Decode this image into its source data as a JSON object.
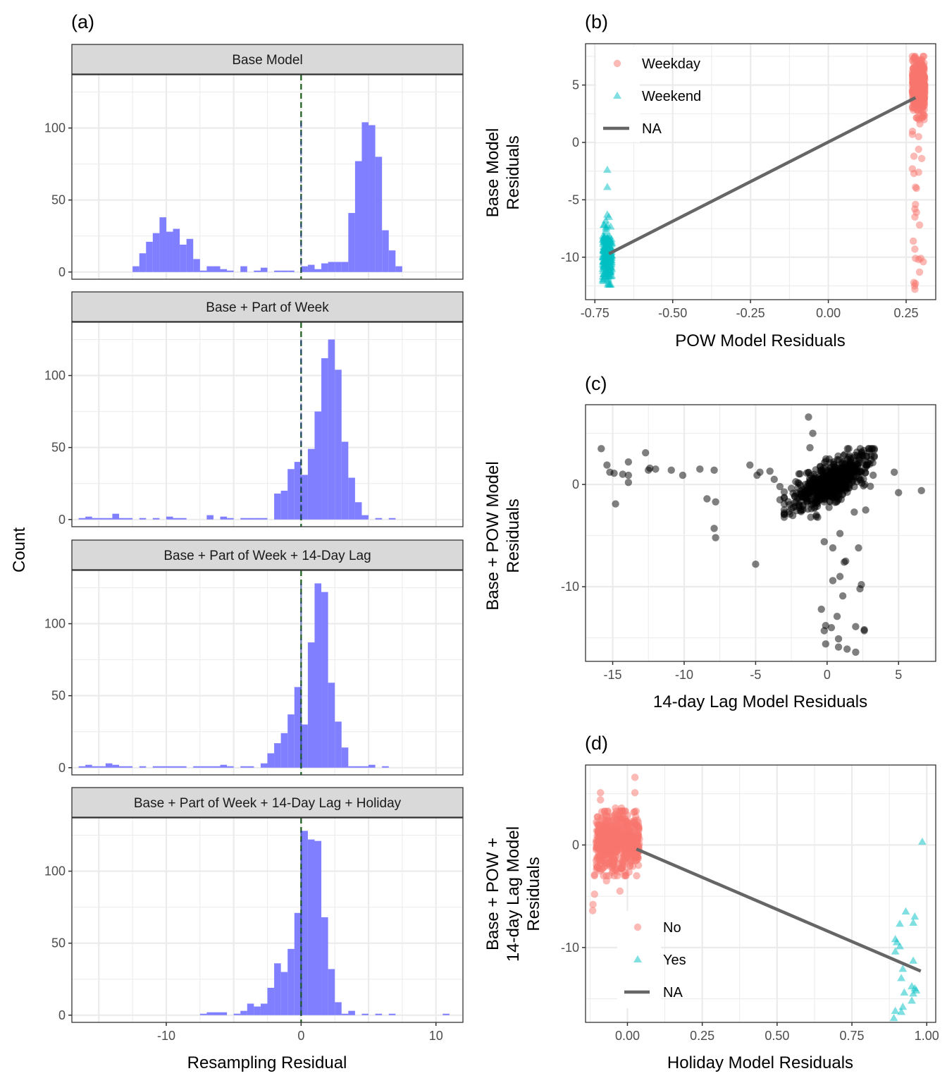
{
  "chart_data": [
    {
      "id": "a",
      "type": "bar",
      "panel_label": "(a)",
      "subtype": "faceted histogram",
      "xlabel": "Resampling Residual",
      "ylabel": "Count",
      "xlim": [
        -17,
        12
      ],
      "ylim": [
        -5,
        137
      ],
      "x_ticks": [
        -10,
        0,
        10
      ],
      "y_ticks": [
        0,
        50,
        100
      ],
      "bin_width": 0.5,
      "bar_color": "#7f7fff",
      "reference_line": {
        "x": 0,
        "style": "dashed",
        "color": "#1a5c1a"
      },
      "facets": [
        {
          "title": "Base Model",
          "bins_start": [
            -12.5,
            -12,
            -11.5,
            -11,
            -10.5,
            -10,
            -9.5,
            -9,
            -8.5,
            -8,
            -7.5,
            -7,
            -6.5,
            -6,
            -5.5,
            -5,
            -4.5,
            -4,
            -3.5,
            -3,
            -2.5,
            -2,
            -1.5,
            -1,
            -0.5,
            0,
            0.5,
            1,
            1.5,
            2,
            2.5,
            3,
            3.5,
            4,
            4.5,
            5,
            5.5,
            6,
            6.5,
            7
          ],
          "counts": [
            4,
            13,
            21,
            27,
            38,
            28,
            30,
            19,
            23,
            9,
            1,
            4,
            4,
            2,
            1,
            0,
            4,
            0,
            1,
            3,
            0,
            1,
            1,
            1,
            0,
            4,
            5,
            2,
            6,
            7,
            7,
            7,
            41,
            77,
            104,
            102,
            80,
            29,
            15,
            4
          ]
        },
        {
          "title": "Base + Part of Week",
          "bins_start": [
            -16.5,
            -16,
            -15.5,
            -15,
            -14.5,
            -14,
            -13.5,
            -13,
            -12.5,
            -12,
            -11.5,
            -11,
            -10.5,
            -10,
            -9.5,
            -9,
            -8.5,
            -8,
            -7.5,
            -7,
            -6.5,
            -6,
            -5.5,
            -5,
            -4.5,
            -4,
            -3.5,
            -3,
            -2.5,
            -2,
            -1.5,
            -1,
            -0.5,
            0,
            0.5,
            1,
            1.5,
            2,
            2.5,
            3,
            3.5,
            4,
            4.5,
            5,
            5.5,
            6,
            6.5
          ],
          "counts": [
            1,
            2,
            1,
            1,
            1,
            4,
            1,
            1,
            0,
            1,
            0,
            1,
            0,
            2,
            1,
            1,
            0,
            0,
            0,
            3,
            0,
            2,
            1,
            0,
            1,
            1,
            1,
            1,
            0,
            18,
            20,
            35,
            40,
            31,
            49,
            75,
            112,
            125,
            104,
            54,
            29,
            12,
            3,
            0,
            1,
            0,
            1
          ]
        },
        {
          "title": "Base + Part of Week + 14-Day Lag",
          "bins_start": [
            -16.5,
            -16,
            -15.5,
            -15,
            -14.5,
            -14,
            -13.5,
            -13,
            -12.5,
            -12,
            -11.5,
            -11,
            -10.5,
            -10,
            -9.5,
            -9,
            -8.5,
            -8,
            -7.5,
            -7,
            -6.5,
            -6,
            -5.5,
            -5,
            -4.5,
            -4,
            -3.5,
            -3,
            -2.5,
            -2,
            -1.5,
            -1,
            -0.5,
            0,
            0.5,
            1,
            1.5,
            2,
            2.5,
            3,
            3.5,
            4,
            4.5,
            5,
            5.5,
            6,
            6.5
          ],
          "counts": [
            1,
            2,
            1,
            1,
            3,
            2,
            1,
            1,
            0,
            1,
            0,
            1,
            1,
            1,
            1,
            1,
            0,
            1,
            1,
            1,
            1,
            2,
            1,
            0,
            1,
            1,
            0,
            3,
            10,
            17,
            24,
            37,
            56,
            30,
            87,
            128,
            122,
            59,
            32,
            14,
            1,
            1,
            1,
            2,
            0,
            1,
            0
          ]
        },
        {
          "title": "Base + Part of Week + 14-Day Lag + Holiday",
          "bins_start": [
            -7.5,
            -7,
            -6.5,
            -6,
            -5.5,
            -5,
            -4.5,
            -4,
            -3.5,
            -3,
            -2.5,
            -2,
            -1.5,
            -1,
            -0.5,
            0,
            0.5,
            1,
            1.5,
            2,
            2.5,
            3,
            3.5,
            4,
            4.5,
            5,
            5.5,
            6,
            6.5,
            7,
            7.5,
            8,
            8.5,
            9,
            9.5,
            10,
            10.5
          ],
          "counts": [
            1,
            2,
            2,
            2,
            0,
            1,
            3,
            8,
            6,
            8,
            19,
            36,
            30,
            46,
            71,
            128,
            122,
            121,
            68,
            32,
            9,
            1,
            3,
            0,
            1,
            0,
            1,
            0,
            1,
            0,
            0,
            0,
            0,
            0,
            0,
            0,
            1
          ]
        }
      ]
    },
    {
      "id": "b",
      "type": "scatter",
      "panel_label": "(b)",
      "xlabel": "POW Model Residuals",
      "ylabel": "Base Model Residuals",
      "xlim": [
        -0.78,
        0.345
      ],
      "ylim": [
        -13.7,
        8.6
      ],
      "x_ticks": [
        -0.75,
        -0.5,
        -0.25,
        0.0
      ],
      "x_tick_labels": [
        "-0.75",
        "-0.50",
        "-0.25",
        "0.00",
        "0.25"
      ],
      "x_ticks_all": [
        -0.75,
        -0.5,
        -0.25,
        0.0,
        0.25
      ],
      "y_ticks": [
        -10,
        -5,
        0,
        5
      ],
      "legend_position": "top-left",
      "legend": [
        {
          "label": "Weekday",
          "shape": "circle",
          "color": "#f8766d"
        },
        {
          "label": "Weekend",
          "shape": "triangle",
          "color": "#00bfc4"
        },
        {
          "label": "NA",
          "shape": "line",
          "color": "#666666"
        }
      ],
      "fit_line": {
        "x": [
          -0.705,
          0.28
        ],
        "y": [
          -9.7,
          3.9
        ]
      },
      "groups": [
        {
          "name": "Weekday",
          "x_range": [
            0.27,
            0.31
          ],
          "y_range": [
            -12.7,
            7.5
          ],
          "approx_n": 520,
          "outliers": [
            [
              0.29,
              -0.6
            ],
            [
              0.275,
              -1.2
            ],
            [
              0.3,
              -1.4
            ],
            [
              0.27,
              -2.3
            ],
            [
              0.275,
              -2.7
            ],
            [
              0.29,
              -2.6
            ],
            [
              0.28,
              -3.9
            ],
            [
              0.283,
              -4.0
            ],
            [
              0.28,
              -5.4
            ],
            [
              0.278,
              -5.8
            ],
            [
              0.283,
              -6.1
            ],
            [
              0.278,
              -6.5
            ],
            [
              0.293,
              -7.2
            ],
            [
              0.273,
              -8.6
            ],
            [
              0.278,
              -9.3
            ],
            [
              0.28,
              -10.1
            ],
            [
              0.29,
              -10.2
            ],
            [
              0.297,
              -10.1
            ],
            [
              0.305,
              -10.4
            ],
            [
              0.293,
              -11.3
            ],
            [
              0.275,
              -12.2
            ],
            [
              0.277,
              -12.5
            ],
            [
              0.278,
              -12.8
            ],
            [
              0.28,
              -12.3
            ],
            [
              0.3,
              2.2
            ],
            [
              0.27,
              0.7
            ],
            [
              0.29,
              0.5
            ]
          ]
        },
        {
          "name": "Weekend",
          "x_range": [
            -0.725,
            -0.695
          ],
          "y_range": [
            -12.4,
            -2.4
          ],
          "approx_n": 210,
          "outliers": [
            [
              -0.71,
              -2.4
            ],
            [
              -0.71,
              -3.9
            ],
            [
              -0.71,
              -6.3
            ],
            [
              -0.715,
              -6.8
            ],
            [
              -0.705,
              -6.5
            ]
          ]
        }
      ]
    },
    {
      "id": "c",
      "type": "scatter",
      "panel_label": "(c)",
      "xlabel": "14-day Lag Model Residuals",
      "ylabel": "Base + POW Model Residuals",
      "xlim": [
        -16.9,
        7.6
      ],
      "ylim": [
        -17.3,
        7.8
      ],
      "x_ticks": [
        -15,
        -10,
        -5,
        0,
        5
      ],
      "y_ticks": [
        -10,
        0
      ],
      "point_color": "#000000",
      "points": [
        [
          -15.8,
          3.5
        ],
        [
          -15.4,
          1.9
        ],
        [
          -15.2,
          1.2
        ],
        [
          -14.9,
          1.1
        ],
        [
          -14.3,
          1.0
        ],
        [
          -13.9,
          0.9
        ],
        [
          -13.9,
          2.2
        ],
        [
          -13.9,
          0.2
        ],
        [
          -14.8,
          -1.9
        ],
        [
          -12.7,
          3.1
        ],
        [
          -12.5,
          1.4
        ],
        [
          -12.4,
          1.6
        ],
        [
          -12.0,
          1.5
        ],
        [
          -10.9,
          1.4
        ],
        [
          -10.1,
          0.9
        ],
        [
          -8.9,
          1.5
        ],
        [
          -7.9,
          1.4
        ],
        [
          -8.4,
          -1.4
        ],
        [
          -7.8,
          -1.7
        ],
        [
          -7.9,
          -4.3
        ],
        [
          -7.8,
          -5.2
        ],
        [
          -5.4,
          1.9
        ],
        [
          -4.9,
          0.9
        ],
        [
          -4.7,
          1.2
        ],
        [
          -4.0,
          1.3
        ],
        [
          -3.7,
          0.5
        ],
        [
          -3.3,
          -0.2
        ],
        [
          -3.3,
          -1.5
        ],
        [
          -5.0,
          -7.8
        ],
        [
          -1.3,
          6.6
        ],
        [
          -1.0,
          5.0
        ],
        [
          -1.2,
          3.6
        ],
        [
          4.7,
          1.2
        ],
        [
          5.0,
          -0.8
        ],
        [
          6.6,
          -0.6
        ],
        [
          -0.2,
          -5.6
        ],
        [
          0.4,
          -6.2
        ],
        [
          0.9,
          -4.8
        ],
        [
          2.2,
          -6.2
        ],
        [
          1.2,
          -7.6
        ],
        [
          1.3,
          -7.5
        ],
        [
          0.4,
          -9.4
        ],
        [
          0.9,
          -9.0
        ],
        [
          2.4,
          -9.8
        ],
        [
          2.3,
          -10.2
        ],
        [
          1.1,
          -10.9
        ],
        [
          -0.4,
          -12.2
        ],
        [
          0.7,
          -12.9
        ],
        [
          -0.1,
          -13.8
        ],
        [
          0.3,
          -14.0
        ],
        [
          -0.2,
          -14.3
        ],
        [
          2.0,
          -13.9
        ],
        [
          2.6,
          -14.2
        ],
        [
          2.6,
          -14.3
        ],
        [
          0.8,
          -15.1
        ],
        [
          -0.1,
          -15.6
        ],
        [
          0.8,
          -15.9
        ],
        [
          1.4,
          -16.1
        ],
        [
          2.0,
          -16.4
        ],
        [
          2.7,
          -2.5
        ],
        [
          1.9,
          -2.7
        ],
        [
          -2.6,
          -2.9
        ]
      ],
      "dense_cluster": {
        "x_range": [
          -3,
          3.3
        ],
        "y_range": [
          -3.2,
          3.5
        ],
        "trend": "positive",
        "approx_n": 620
      }
    },
    {
      "id": "d",
      "type": "scatter",
      "panel_label": "(d)",
      "xlabel": "Holiday Model Residuals",
      "ylabel": "Base + POW + 14-day Lag Model Residuals",
      "xlim": [
        -0.14,
        1.03
      ],
      "ylim": [
        -17.3,
        7.8
      ],
      "x_ticks": [
        0.0,
        0.25,
        0.5,
        0.75,
        1.0
      ],
      "x_tick_labels": [
        "0.00",
        "0.25",
        "0.50",
        "0.75",
        "1.00"
      ],
      "y_ticks": [
        -10,
        0
      ],
      "legend_position": "bottom-left",
      "legend": [
        {
          "label": "No",
          "shape": "circle",
          "color": "#f8766d"
        },
        {
          "label": "Yes",
          "shape": "triangle",
          "color": "#00bfc4"
        },
        {
          "label": "NA",
          "shape": "line",
          "color": "#666666"
        }
      ],
      "fit_line": {
        "x": [
          0.03,
          0.98
        ],
        "y": [
          -0.4,
          -12.3
        ]
      },
      "groups": [
        {
          "name": "No",
          "x_range": [
            -0.12,
            0.04
          ],
          "y_range": [
            -6.4,
            6.6
          ],
          "approx_n": 650,
          "outliers": [
            [
              0.025,
              6.6
            ],
            [
              0.025,
              5.1
            ],
            [
              -0.09,
              5.1
            ],
            [
              -0.09,
              4.4
            ],
            [
              -0.04,
              3.6
            ],
            [
              -0.02,
              3.6
            ],
            [
              -0.11,
              -3.0
            ],
            [
              -0.11,
              -2.9
            ],
            [
              -0.11,
              -4.8
            ],
            [
              -0.115,
              -5.8
            ],
            [
              -0.116,
              -6.4
            ],
            [
              -0.025,
              -4.5
            ],
            [
              -0.07,
              -3.5
            ]
          ]
        },
        {
          "name": "Yes",
          "points": [
            [
              0.985,
              0.3
            ],
            [
              0.93,
              -6.5
            ],
            [
              0.96,
              -7.0
            ],
            [
              0.91,
              -7.7
            ],
            [
              0.955,
              -7.6
            ],
            [
              0.895,
              -9.2
            ],
            [
              0.9,
              -9.5
            ],
            [
              0.91,
              -9.9
            ],
            [
              0.895,
              -10.4
            ],
            [
              0.955,
              -11.3
            ],
            [
              0.92,
              -12.1
            ],
            [
              0.915,
              -13.0
            ],
            [
              0.95,
              -13.8
            ],
            [
              0.96,
              -14.0
            ],
            [
              0.965,
              -14.2
            ],
            [
              0.925,
              -14.4
            ],
            [
              0.955,
              -14.5
            ],
            [
              0.95,
              -15.2
            ],
            [
              0.92,
              -15.8
            ],
            [
              0.895,
              -16.2
            ],
            [
              0.915,
              -16.3
            ],
            [
              0.89,
              -16.9
            ]
          ]
        }
      ]
    }
  ],
  "common_ylabel": "Count"
}
